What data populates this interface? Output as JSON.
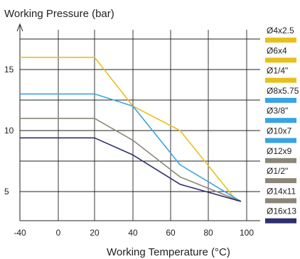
{
  "chart_data": {
    "type": "line",
    "title": "",
    "xlabel": "Working Temperature (°C)",
    "ylabel": "Working Pressure (bar)",
    "xlim": [
      -40,
      100
    ],
    "ylim": [
      3,
      18
    ],
    "x_ticks": [
      -40,
      0,
      20,
      40,
      60,
      80,
      100
    ],
    "y_ticks": [
      5,
      10,
      15
    ],
    "grid": "horizontal and vertical",
    "legend_position": "right",
    "legend": [
      {
        "label": "Ø4x2.5",
        "color": "#e8c01c"
      },
      {
        "label": "Ø6x4",
        "color": "#e8c01c"
      },
      {
        "label": "Ø1/4\"",
        "color": "#e8c01c"
      },
      {
        "label": "Ø8x5.75",
        "color": "#3aa3e3"
      },
      {
        "label": "Ø3/8\"",
        "color": "#3aa3e3"
      },
      {
        "label": "Ø10x7",
        "color": "#3aa3e3"
      },
      {
        "label": "Ø12x9",
        "color": "#8b8677"
      },
      {
        "label": "Ø1/2\"",
        "color": "#8b8677"
      },
      {
        "label": "Ø14x11",
        "color": "#8b8677"
      },
      {
        "label": "Ø16x13",
        "color": "#2e2f6e"
      }
    ],
    "series": [
      {
        "color": "#e8c01c",
        "x": [
          -40,
          20,
          40,
          65,
          95
        ],
        "y": [
          16,
          16,
          12,
          10,
          4.2
        ]
      },
      {
        "color": "#3aa3e3",
        "x": [
          -40,
          20,
          40,
          65,
          97
        ],
        "y": [
          13,
          13,
          12,
          7.2,
          4.2
        ]
      },
      {
        "color": "#8b8677",
        "x": [
          -40,
          20,
          40,
          65,
          97
        ],
        "y": [
          11,
          11,
          9.2,
          6.2,
          4.2
        ]
      },
      {
        "color": "#2e2f6e",
        "x": [
          -40,
          20,
          40,
          65,
          97
        ],
        "y": [
          9.4,
          9.4,
          8,
          5.6,
          4.2
        ]
      }
    ]
  }
}
